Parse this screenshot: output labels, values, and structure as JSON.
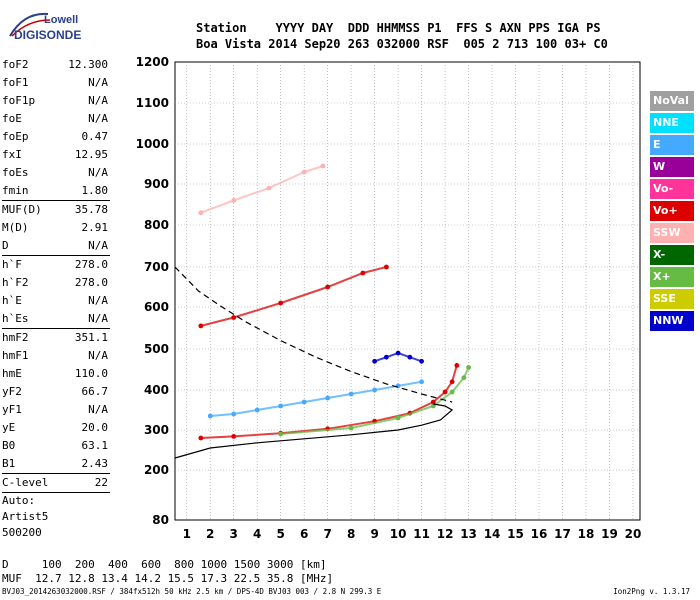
{
  "logo": {
    "line1": "Lowell",
    "line2": "DIGISONDE"
  },
  "header": {
    "labels": [
      "Station",
      "YYYY DAY",
      "DDD HHMMSS P1",
      "FFS S AXN PPS IGA PS"
    ],
    "values": [
      "Boa Vista",
      "2014 Sep20",
      "263 032000 RSF",
      "005 2 713 100 03+ C0"
    ]
  },
  "params": [
    {
      "k": "foF2",
      "v": "12.300"
    },
    {
      "k": "foF1",
      "v": "N/A"
    },
    {
      "k": "foF1p",
      "v": "N/A"
    },
    {
      "k": "foE",
      "v": "N/A"
    },
    {
      "k": "foEp",
      "v": "0.47"
    },
    {
      "k": "fxI",
      "v": "12.95"
    },
    {
      "k": "foEs",
      "v": "N/A"
    },
    {
      "k": "fmin",
      "v": "1.80"
    },
    {
      "k": "MUF(D)",
      "v": "35.78"
    },
    {
      "k": "M(D)",
      "v": "2.91"
    },
    {
      "k": "D",
      "v": "N/A"
    },
    {
      "k": "h`F",
      "v": "278.0"
    },
    {
      "k": "h`F2",
      "v": "278.0"
    },
    {
      "k": "h`E",
      "v": "N/A"
    },
    {
      "k": "h`Es",
      "v": "N/A"
    },
    {
      "k": "hmF2",
      "v": "351.1"
    },
    {
      "k": "hmF1",
      "v": "N/A"
    },
    {
      "k": "hmE",
      "v": "110.0"
    },
    {
      "k": "yF2",
      "v": "66.7"
    },
    {
      "k": "yF1",
      "v": "N/A"
    },
    {
      "k": "yE",
      "v": "20.0"
    },
    {
      "k": "B0",
      "v": "63.1"
    },
    {
      "k": "B1",
      "v": "2.43"
    },
    {
      "k": "C-level",
      "v": "22"
    }
  ],
  "auto": [
    "Auto:",
    "Artist5",
    "500200"
  ],
  "legend": [
    {
      "name": "NoVal",
      "color": "#a0a0a0"
    },
    {
      "name": "NNE",
      "color": "#00e0ff"
    },
    {
      "name": "E",
      "color": "#44aaff"
    },
    {
      "name": "W",
      "color": "#990099"
    },
    {
      "name": "Vo-",
      "color": "#ff3399"
    },
    {
      "name": "Vo+",
      "color": "#dd0000"
    },
    {
      "name": "SSW",
      "color": "#ffb0b0"
    },
    {
      "name": "X-",
      "color": "#006600"
    },
    {
      "name": "X+",
      "color": "#66bb44"
    },
    {
      "name": "SSE",
      "color": "#cccc00"
    },
    {
      "name": "NNW",
      "color": "#0000cc"
    }
  ],
  "bottom": {
    "d_line": "D     100  200  400  600  800 1000 1500 3000 [km]",
    "muf_line": "MUF  12.7 12.8 13.4 14.2 15.5 17.3 22.5 35.8 [MHz]",
    "footer": "BVJ03_2014263032000.RSF / 384fx512h 50 kHz 2.5 km / DPS-4D BVJ03 003 / 2.8 N 299.3 E",
    "version": "Ion2Png v. 1.3.17"
  },
  "chart_data": {
    "type": "scatter",
    "xlim": [
      0.5,
      20.3
    ],
    "ylim": [
      80,
      1200
    ],
    "xticks": [
      1,
      2,
      3,
      4,
      5,
      6,
      7,
      8,
      9,
      10,
      11,
      12,
      13,
      14,
      15,
      16,
      17,
      18,
      19,
      20
    ],
    "yticks": [
      80,
      200,
      300,
      400,
      500,
      600,
      700,
      800,
      900,
      1000,
      1100,
      1200
    ],
    "grid": true,
    "legend_position": "right",
    "series": [
      {
        "name": "Vo+",
        "color": "#dd0000",
        "trace": "1st hop O-trace",
        "x": [
          1.6,
          3,
          5,
          7,
          9,
          10.5,
          11.5,
          12,
          12.3,
          12.5
        ],
        "y": [
          280,
          284,
          292,
          303,
          322,
          342,
          370,
          395,
          420,
          460
        ]
      },
      {
        "name": "X+",
        "color": "#66bb44",
        "trace": "1st hop X-trace",
        "x": [
          5,
          8,
          10,
          11.5,
          12.3,
          12.8,
          13.0
        ],
        "y": [
          290,
          305,
          330,
          360,
          395,
          430,
          455
        ]
      },
      {
        "name": "Vo+",
        "color": "#dd0000",
        "trace": "2nd hop O-trace",
        "x": [
          1.6,
          3,
          5,
          7,
          8.5,
          9.5
        ],
        "y": [
          555,
          575,
          610,
          650,
          685,
          700
        ]
      },
      {
        "name": "SSW",
        "color": "#ffb0b0",
        "trace": "3rd hop trace",
        "x": [
          1.6,
          3,
          4.5,
          6,
          6.8
        ],
        "y": [
          830,
          860,
          890,
          930,
          945
        ]
      },
      {
        "name": "E",
        "color": "#44aaff",
        "trace": "spread F cloud",
        "x": [
          2,
          3,
          4,
          5,
          6,
          7,
          8,
          9,
          10,
          11
        ],
        "y": [
          335,
          340,
          350,
          360,
          370,
          380,
          390,
          400,
          410,
          420
        ]
      },
      {
        "name": "NNW",
        "color": "#0000cc",
        "trace": "spread F oblique",
        "x": [
          9,
          9.5,
          10,
          10.5,
          11
        ],
        "y": [
          470,
          480,
          490,
          480,
          470
        ]
      }
    ],
    "profiles": [
      {
        "name": "true height profile",
        "color": "#000000",
        "style": "solid",
        "x": [
          0.5,
          2,
          4,
          6,
          8,
          10,
          11,
          11.8,
          12.3,
          12.0,
          11.5
        ],
        "y": [
          230,
          255,
          268,
          278,
          288,
          300,
          312,
          325,
          350,
          360,
          365
        ]
      },
      {
        "name": "topside profile",
        "color": "#000000",
        "style": "dashed",
        "x": [
          0.5,
          1.5,
          2.5,
          3.5,
          5,
          6.5,
          8,
          9.5,
          11,
          12.3
        ],
        "y": [
          700,
          640,
          600,
          565,
          520,
          480,
          445,
          415,
          390,
          370
        ]
      }
    ]
  }
}
